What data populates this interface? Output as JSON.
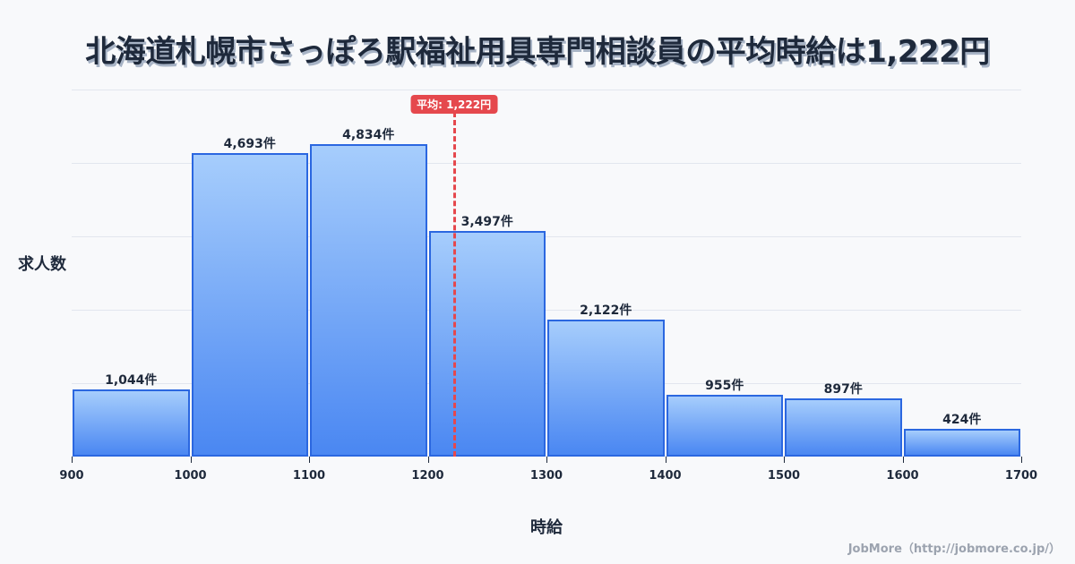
{
  "title": "北海道札幌市さっぽろ駅福祉用具専門相談員の平均時給は1,222円",
  "y_axis_label": "求人数",
  "x_axis_label": "時給",
  "credit": "JobMore（http://jobmore.co.jp/）",
  "average": {
    "label": "平均: 1,222円",
    "value": 1222,
    "color": "#e5484d"
  },
  "colors": {
    "bar_border": "#2b67e0",
    "bar_top": "#a6cdfc",
    "bar_bottom": "#4a87f2",
    "grid": "#e2e6ee"
  },
  "bars": [
    {
      "label": "1,044件"
    },
    {
      "label": "4,693件"
    },
    {
      "label": "4,834件"
    },
    {
      "label": "3,497件"
    },
    {
      "label": "2,122件"
    },
    {
      "label": "955件"
    },
    {
      "label": "897件"
    },
    {
      "label": "424件"
    }
  ],
  "ticks": [
    "900",
    "1000",
    "1100",
    "1200",
    "1300",
    "1400",
    "1500",
    "1600",
    "1700"
  ],
  "chart_data": {
    "type": "bar",
    "title": "北海道札幌市さっぽろ駅福祉用具専門相談員の平均時給は1,222円",
    "xlabel": "時給",
    "ylabel": "求人数",
    "categories": [
      "900-1000",
      "1000-1100",
      "1100-1200",
      "1200-1300",
      "1300-1400",
      "1400-1500",
      "1500-1600",
      "1600-1700"
    ],
    "bin_edges": [
      900,
      1000,
      1100,
      1200,
      1300,
      1400,
      1500,
      1600,
      1700
    ],
    "values": [
      1044,
      4693,
      4834,
      3497,
      2122,
      955,
      897,
      424
    ],
    "value_suffix": "件",
    "annotations": [
      {
        "type": "vline",
        "x": 1222,
        "label": "平均: 1,222円"
      }
    ],
    "xlim": [
      900,
      1700
    ],
    "grid": true,
    "legend": null
  }
}
